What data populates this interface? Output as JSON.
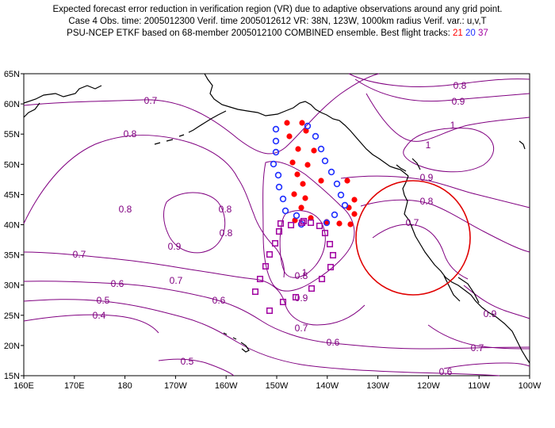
{
  "header": {
    "line1": "Expected forecast error reduction in verification region (VR) due to adaptive observations around any grid point.",
    "line2": "Case 4   Obs. time: 2005012300   Verif. time 2005012612   VR: 38N, 123W, 1000km radius   Verif. var.: u,v,T",
    "line3_prefix": "PSU-NCEP ETKF based on 68-member 2005012100 COMBINED ensemble.   Best flight tracks: ",
    "track1": "21",
    "track2": "20",
    "track3": "37"
  },
  "axes": {
    "lat_labels": [
      "65N",
      "60N",
      "55N",
      "50N",
      "45N",
      "40N",
      "35N",
      "30N",
      "25N",
      "20N",
      "15N"
    ],
    "lon_labels": [
      "160E",
      "170E",
      "180",
      "170W",
      "160W",
      "150W",
      "140W",
      "130W",
      "120W",
      "110W",
      "100W"
    ]
  },
  "contour_labels": [
    {
      "text": "0.8"
    },
    {
      "text": "0.9"
    },
    {
      "text": "1"
    },
    {
      "text": "1"
    },
    {
      "text": "0.7"
    },
    {
      "text": "0.8"
    },
    {
      "text": "0.9"
    },
    {
      "text": "0.8"
    },
    {
      "text": "0.7"
    },
    {
      "text": "0.8"
    },
    {
      "text": "0.8"
    },
    {
      "text": "0.8"
    },
    {
      "text": "0.9"
    },
    {
      "text": "0.7"
    },
    {
      "text": "0.7"
    },
    {
      "text": "0.6"
    },
    {
      "text": "0.6"
    },
    {
      "text": "0.5"
    },
    {
      "text": "0.4"
    },
    {
      "text": "1"
    },
    {
      "text": "0.9"
    },
    {
      "text": "0.8"
    },
    {
      "text": "0.7"
    },
    {
      "text": "0.6"
    },
    {
      "text": "0.5"
    },
    {
      "text": "0.9"
    },
    {
      "text": "0.7"
    },
    {
      "text": "0.6"
    }
  ],
  "colors": {
    "contour": "#800080",
    "track_21": "#ff0000",
    "track_20": "#2030ff",
    "track_37": "#a000a0",
    "verification_circle": "#e00000",
    "coast": "#000000"
  }
}
